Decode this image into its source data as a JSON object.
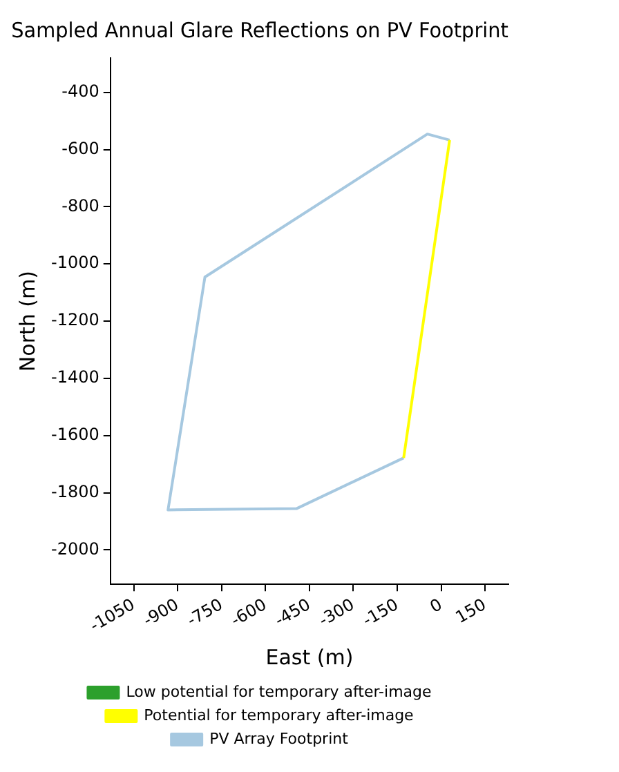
{
  "chart_data": {
    "type": "line",
    "title": "Sampled Annual Glare Reflections on PV Footprint",
    "xlabel": "East (m)",
    "ylabel": "North (m)",
    "xlim": [
      -1130,
      230
    ],
    "xticks": [
      -1050,
      -900,
      -750,
      -600,
      -450,
      -300,
      -150,
      0,
      150
    ],
    "ylim": [
      -2120,
      -280
    ],
    "yticks": [
      -400,
      -600,
      -800,
      -1000,
      -1200,
      -1400,
      -1600,
      -1800,
      -2000
    ],
    "grid": false,
    "legend": "bottom",
    "marker": "none",
    "line_style": "solid",
    "series": [
      {
        "name": "Low potential for temporary after-image",
        "color": "#2ca02c"
      },
      {
        "name": "Potential for temporary after-image",
        "color": "#ffff00",
        "x": [
          29,
          -128
        ],
        "values": [
          -567,
          -1678
        ]
      },
      {
        "name": "PV Array Footprint",
        "color": "#a6c8e0",
        "x": [
          29,
          -47,
          -807,
          -933,
          -493,
          -128
        ],
        "values": [
          -567,
          -546,
          -1046,
          -1860,
          -1855,
          -1678
        ]
      }
    ]
  }
}
